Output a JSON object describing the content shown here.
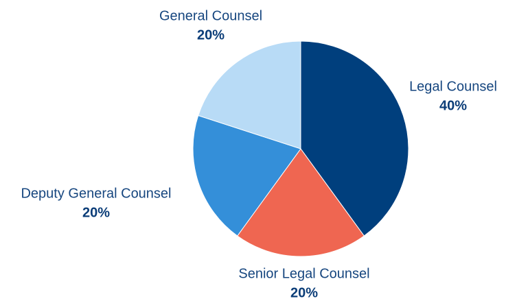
{
  "chart_data": {
    "type": "pie",
    "categories": [
      "Legal Counsel",
      "Senior Legal Counsel",
      "Deputy General Counsel",
      "General Counsel"
    ],
    "values": [
      40,
      20,
      20,
      20
    ],
    "value_labels": [
      "40%",
      "20%",
      "20%",
      "20%"
    ],
    "colors": [
      "#003f7d",
      "#ef6651",
      "#348fd9",
      "#b8dbf6"
    ]
  }
}
